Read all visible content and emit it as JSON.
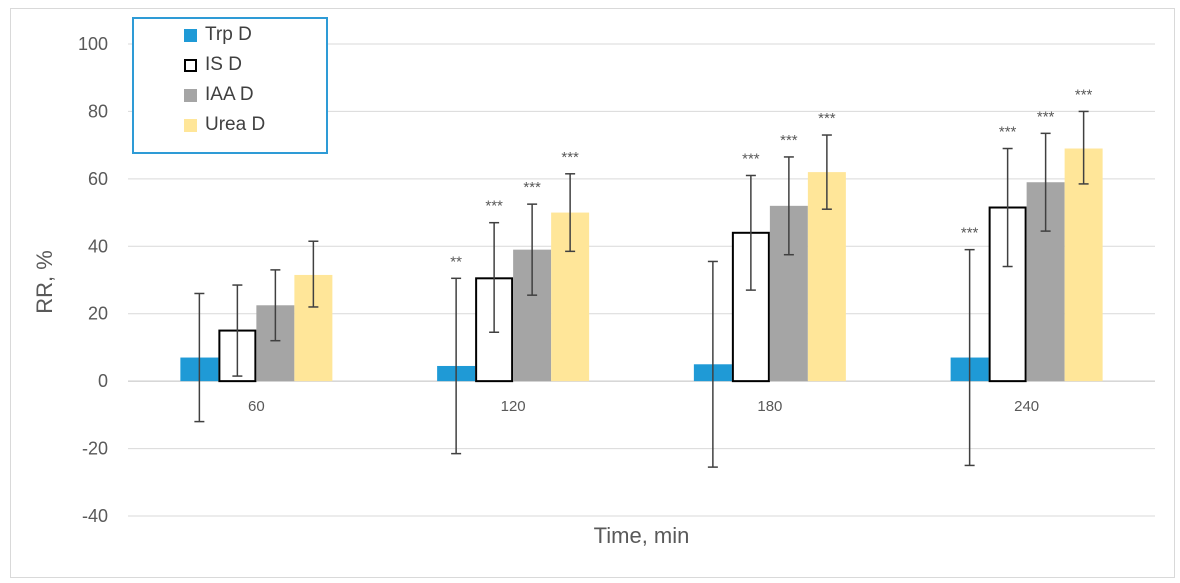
{
  "chart_data": {
    "type": "bar",
    "xlabel": "Time, min",
    "ylabel": "RR, %",
    "ylim": [
      -40,
      100
    ],
    "yticks": [
      -40,
      -20,
      0,
      20,
      40,
      60,
      80,
      100
    ],
    "categories": [
      "60",
      "120",
      "180",
      "240"
    ],
    "grid": true,
    "legend_position": "top-left",
    "series": [
      {
        "name": "Trp D",
        "color": "#1f9ad6",
        "style": "filled",
        "values": [
          7,
          4.5,
          5,
          7
        ],
        "err_low": [
          -12,
          -21.5,
          -25.5,
          -25
        ],
        "err_high": [
          26,
          30.5,
          35.5,
          39
        ],
        "significance": [
          "",
          "**",
          "",
          "***"
        ]
      },
      {
        "name": "IS D",
        "color": "#000000",
        "style": "outline",
        "values": [
          15,
          30.5,
          44,
          51.5
        ],
        "err_low": [
          1.5,
          14.5,
          27,
          34
        ],
        "err_high": [
          28.5,
          47,
          61,
          69
        ],
        "significance": [
          "",
          "***",
          "***",
          "***"
        ]
      },
      {
        "name": "IAA D",
        "color": "#a5a5a5",
        "style": "filled",
        "values": [
          22.5,
          39,
          52,
          59
        ],
        "err_low": [
          12,
          25.5,
          37.5,
          44.5
        ],
        "err_high": [
          33,
          52.5,
          66.5,
          73.5
        ],
        "significance": [
          "",
          "***",
          "***",
          "***"
        ]
      },
      {
        "name": "Urea D",
        "color": "#ffe699",
        "style": "filled",
        "values": [
          31.5,
          50,
          62,
          69
        ],
        "err_low": [
          22,
          38.5,
          51,
          58.5
        ],
        "err_high": [
          41.5,
          61.5,
          73,
          80
        ],
        "significance": [
          "",
          "***",
          "***",
          "***"
        ]
      }
    ]
  }
}
